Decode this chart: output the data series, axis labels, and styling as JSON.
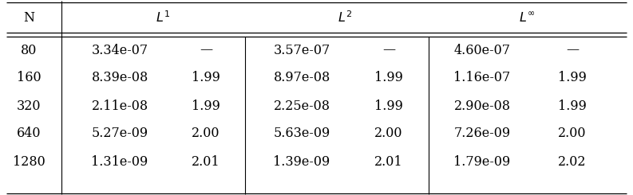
{
  "col_N": [
    "80",
    "160",
    "320",
    "640",
    "1280"
  ],
  "col_L1_err": [
    "3.34e-07",
    "8.39e-08",
    "2.11e-08",
    "5.27e-09",
    "1.31e-09"
  ],
  "col_L1_ord": [
    "—",
    "1.99",
    "1.99",
    "2.00",
    "2.01"
  ],
  "col_L2_err": [
    "3.57e-07",
    "8.97e-08",
    "2.25e-08",
    "5.63e-09",
    "1.39e-09"
  ],
  "col_L2_ord": [
    "—",
    "1.99",
    "1.99",
    "2.00",
    "2.01"
  ],
  "col_Linf_err": [
    "4.60e-07",
    "1.16e-07",
    "2.90e-08",
    "7.26e-09",
    "1.79e-09"
  ],
  "col_Linf_ord": [
    "—",
    "1.99",
    "1.99",
    "2.00",
    "2.02"
  ],
  "header_N": "N",
  "header_L1": "$L^1$",
  "header_L2": "$L^2$",
  "header_Linf": "$L^{\\infty}$",
  "bg_color": "#ffffff",
  "text_color": "#000000",
  "font_size": 11.5,
  "fig_width": 7.93,
  "fig_height": 2.45
}
